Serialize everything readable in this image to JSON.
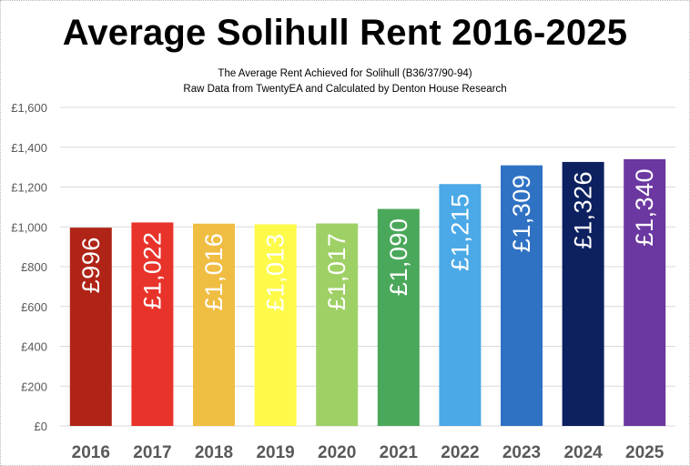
{
  "chart_data": {
    "type": "bar",
    "title": "Average Solihull Rent 2016-2025",
    "subtitle": [
      "The Average Rent Achieved for Solihull (B36/37/90-94)",
      "Raw Data from TwentyEA and Calculated by Denton House Research"
    ],
    "xlabel": "",
    "ylabel": "",
    "ylim": [
      0,
      1600
    ],
    "yticks": [
      0,
      200,
      400,
      600,
      800,
      1000,
      1200,
      1400,
      1600
    ],
    "ytick_labels": [
      "£0",
      "£200",
      "£400",
      "£600",
      "£800",
      "£1,000",
      "£1,200",
      "£1,400",
      "£1,600"
    ],
    "grid": true,
    "legend": "none",
    "categories": [
      "2016",
      "2017",
      "2018",
      "2019",
      "2020",
      "2021",
      "2022",
      "2023",
      "2024",
      "2025"
    ],
    "values": [
      996,
      1022,
      1016,
      1013,
      1017,
      1090,
      1215,
      1309,
      1326,
      1340
    ],
    "data_labels": [
      "£996",
      "£1,022",
      "£1,016",
      "£1,013",
      "£1,017",
      "£1,090",
      "£1,215",
      "£1,309",
      "£1,326",
      "£1,340"
    ],
    "colors": [
      "#b02418",
      "#e8332a",
      "#f0bd43",
      "#fefa4a",
      "#9fd065",
      "#4aa85a",
      "#4ba9e8",
      "#2f72c4",
      "#0d2160",
      "#6b37a0"
    ],
    "label_colors": [
      "#ffffff",
      "#ffffff",
      "#ffffff",
      "#ffffff",
      "#ffffff",
      "#ffffff",
      "#ffffff",
      "#ffffff",
      "#ffffff",
      "#ffffff"
    ],
    "gridline_color": "#d9d9d9",
    "axis_text_color": "#595959"
  }
}
